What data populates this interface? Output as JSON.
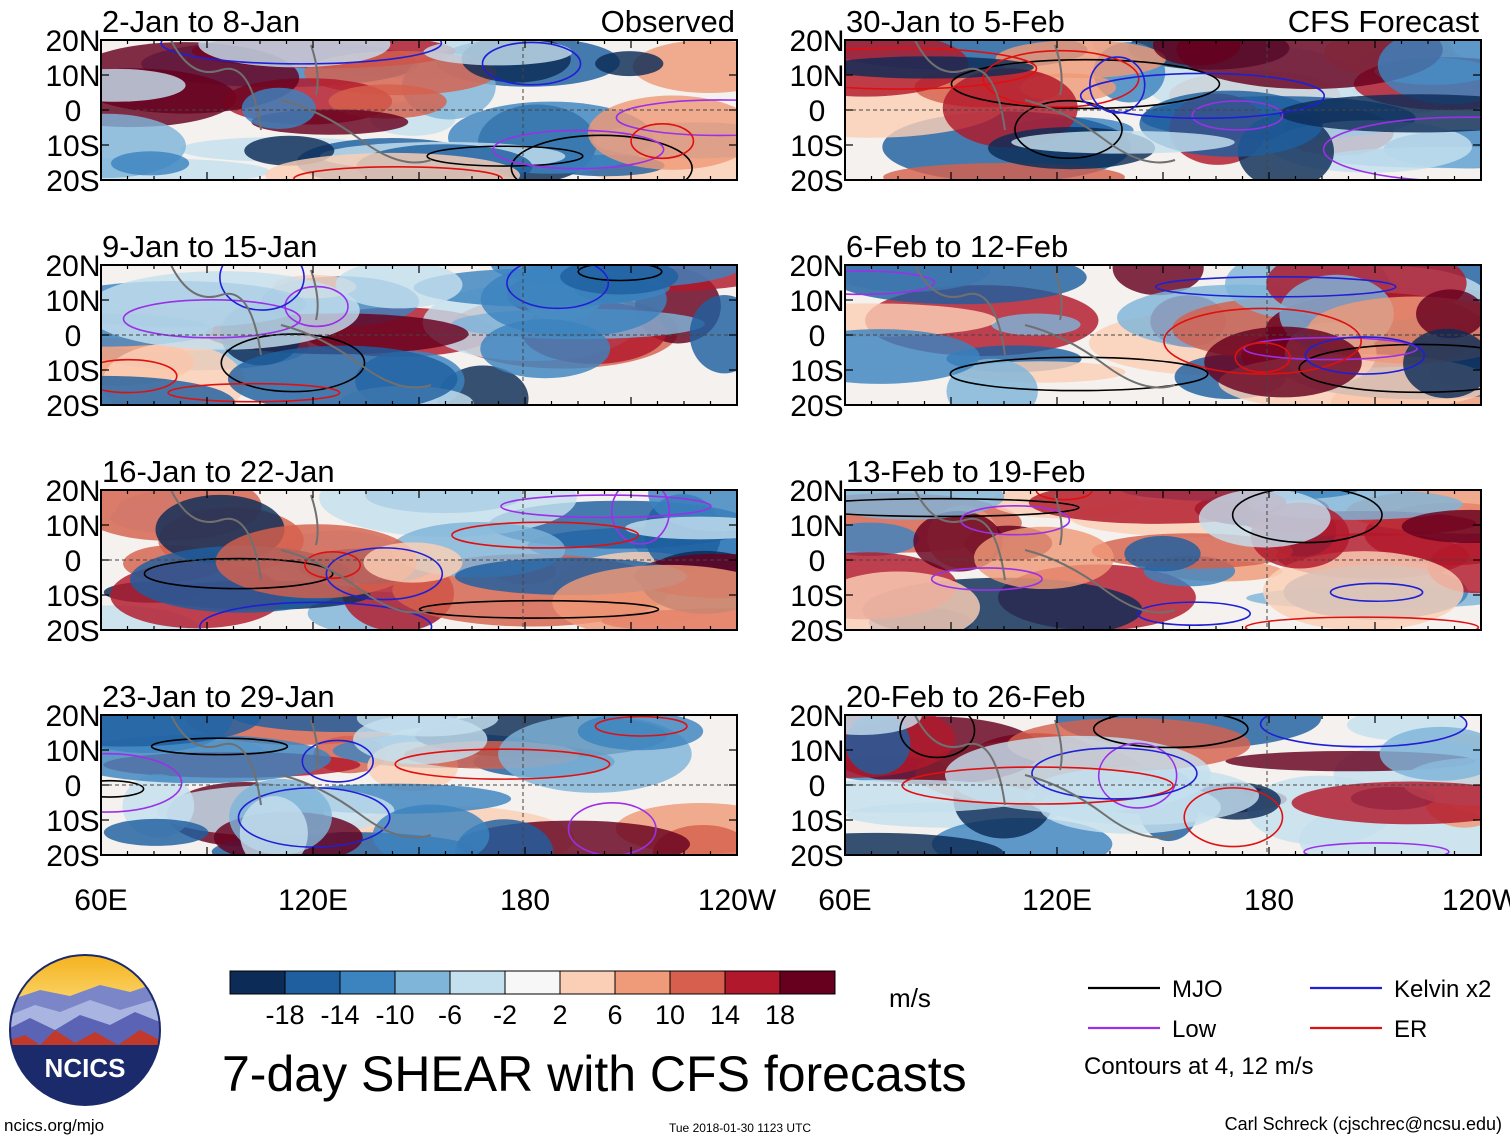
{
  "title": "7-day SHEAR with CFS forecasts",
  "footer": {
    "site": "ncics.org/mjo",
    "timestamp": "Tue 2018-01-30 1123 UTC",
    "author": "Carl Schreck (cjschrec@ncsu.edu)"
  },
  "logo": {
    "text": "NCICS"
  },
  "colorbar": {
    "unit": "m/s",
    "ticks": [
      "-18",
      "-14",
      "-10",
      "-6",
      "-2",
      "2",
      "6",
      "10",
      "14",
      "18"
    ],
    "colors": [
      "#0c2c57",
      "#1f5fa0",
      "#3c84c0",
      "#7fb5d9",
      "#c4dfee",
      "#f7f7f7",
      "#fbcfb6",
      "#ef9a78",
      "#d6604d",
      "#b2182b",
      "#67001f"
    ]
  },
  "legend": {
    "items": [
      {
        "label": "MJO",
        "color": "#000000"
      },
      {
        "label": "Kelvin x2",
        "color": "#1f1fd6"
      },
      {
        "label": "Low",
        "color": "#9b30e8"
      },
      {
        "label": "ER",
        "color": "#e01010"
      }
    ],
    "note": "Contours at 4, 12 m/s"
  },
  "chart_data": {
    "type": "heatmap",
    "title": "7-day SHEAR with CFS forecasts",
    "xlabel": "",
    "ylabel": "",
    "x_range": [
      "60E",
      "120W"
    ],
    "x_ticks": [
      "60E",
      "120E",
      "180",
      "120W"
    ],
    "y_ticks": [
      "20N",
      "10N",
      "0",
      "10S",
      "20S"
    ],
    "ylim": [
      -20,
      20
    ],
    "columns": [
      {
        "label": "Observed",
        "panels": [
          {
            "period": "2-Jan to 8-Jan"
          },
          {
            "period": "9-Jan to 15-Jan"
          },
          {
            "period": "16-Jan to 22-Jan"
          },
          {
            "period": "23-Jan to 29-Jan"
          }
        ]
      },
      {
        "label": "CFS Forecast",
        "panels": [
          {
            "period": "30-Jan to 5-Feb"
          },
          {
            "period": "6-Feb to 12-Feb"
          },
          {
            "period": "13-Feb to 19-Feb"
          },
          {
            "period": "20-Feb to 26-Feb"
          }
        ]
      }
    ]
  }
}
